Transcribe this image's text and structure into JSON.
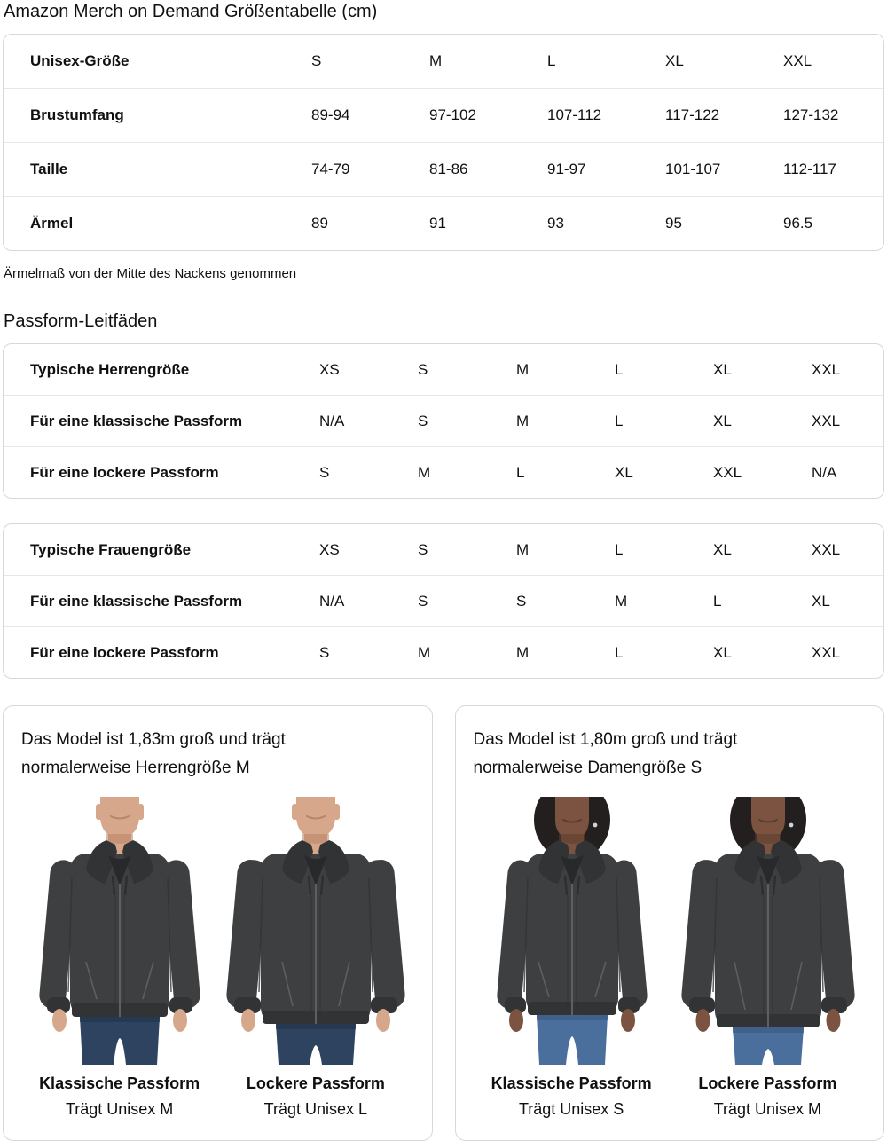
{
  "page": {
    "title": "Amazon Merch on Demand Größentabelle (cm)"
  },
  "size_table": {
    "rows": [
      {
        "label": "Unisex-Größe",
        "values": [
          "S",
          "M",
          "L",
          "XL",
          "XXL"
        ]
      },
      {
        "label": "Brustumfang",
        "values": [
          "89-94",
          "97-102",
          "107-112",
          "117-122",
          "127-132"
        ]
      },
      {
        "label": "Taille",
        "values": [
          "74-79",
          "81-86",
          "91-97",
          "101-107",
          "112-117"
        ]
      },
      {
        "label": "Ärmel",
        "values": [
          "89",
          "91",
          "93",
          "95",
          "96.5"
        ]
      }
    ],
    "footnote": "Ärmelmaß von der Mitte des Nackens genommen"
  },
  "fit_section": {
    "heading": "Passform-Leitfäden",
    "men_table": {
      "rows": [
        {
          "label": "Typische Herrengröße",
          "values": [
            "XS",
            "S",
            "M",
            "L",
            "XL",
            "XXL"
          ]
        },
        {
          "label": "Für eine klassische Passform",
          "values": [
            "N/A",
            "S",
            "M",
            "L",
            "XL",
            "XXL"
          ]
        },
        {
          "label": "Für eine lockere Passform",
          "values": [
            "S",
            "M",
            "L",
            "XL",
            "XXL",
            "N/A"
          ]
        }
      ]
    },
    "women_table": {
      "rows": [
        {
          "label": "Typische Frauengröße",
          "values": [
            "XS",
            "S",
            "M",
            "L",
            "XL",
            "XXL"
          ]
        },
        {
          "label": "Für eine klassische Passform",
          "values": [
            "N/A",
            "S",
            "S",
            "M",
            "L",
            "XL"
          ]
        },
        {
          "label": "Für eine lockere Passform",
          "values": [
            "S",
            "M",
            "M",
            "L",
            "XL",
            "XXL"
          ]
        }
      ]
    }
  },
  "model_cards": [
    {
      "description": "Das Model ist 1,83m groß und trägt normalerweise Herrengröße M",
      "figures": [
        {
          "model": "male",
          "fit": "classic",
          "fit_label": "Klassische Passform",
          "size_label": "Trägt Unisex M"
        },
        {
          "model": "male",
          "fit": "loose",
          "fit_label": "Lockere Passform",
          "size_label": "Trägt Unisex L"
        }
      ]
    },
    {
      "description": "Das Model ist 1,80m groß und trägt normalerweise Damengröße S",
      "figures": [
        {
          "model": "female",
          "fit": "classic",
          "fit_label": "Klassische Passform",
          "size_label": "Trägt Unisex S"
        },
        {
          "model": "female",
          "fit": "loose",
          "fit_label": "Lockere Passform",
          "size_label": "Trägt Unisex M"
        }
      ]
    }
  ],
  "colors": {
    "text": "#0f1111",
    "table_border": "#d5d9d9",
    "row_divider": "#e7e7e7",
    "hoodie": "#3d3f40",
    "hoodie_dark": "#313334",
    "hoodie_seam": "#5c6062",
    "male_skin": "#d7a78b",
    "male_skin_shadow": "#b98467",
    "male_jeans": "#2d4360",
    "male_jeans_dark": "#23344b",
    "female_skin": "#7b5340",
    "female_skin_shadow": "#5d3c2c",
    "female_hair": "#221f1e",
    "female_jeans": "#4a6f9d",
    "female_jeans_dark": "#3c5b82"
  }
}
